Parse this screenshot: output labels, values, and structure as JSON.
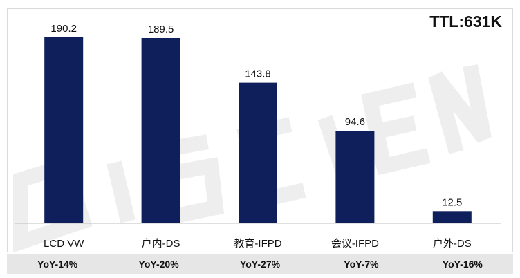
{
  "chart_data": {
    "type": "bar",
    "categories": [
      "LCD VW",
      "户内-DS",
      "教育-IFPD",
      "会议-IFPD",
      "户外-DS"
    ],
    "values": [
      190.2,
      189.5,
      143.8,
      94.6,
      12.5
    ],
    "value_labels": [
      "190.2",
      "189.5",
      "143.8",
      "94.6",
      "12.5"
    ],
    "yoy": [
      "YoY-14%",
      "YoY-20%",
      "YoY-27%",
      "YoY-7%",
      "YoY-16%"
    ],
    "total_label": "TTL:631K",
    "title": "",
    "xlabel": "",
    "ylabel": "",
    "ylim": [
      0,
      200
    ],
    "grid": false,
    "bar_color": "#0f1f5c"
  },
  "watermark": {
    "text": "DISCIEN"
  }
}
